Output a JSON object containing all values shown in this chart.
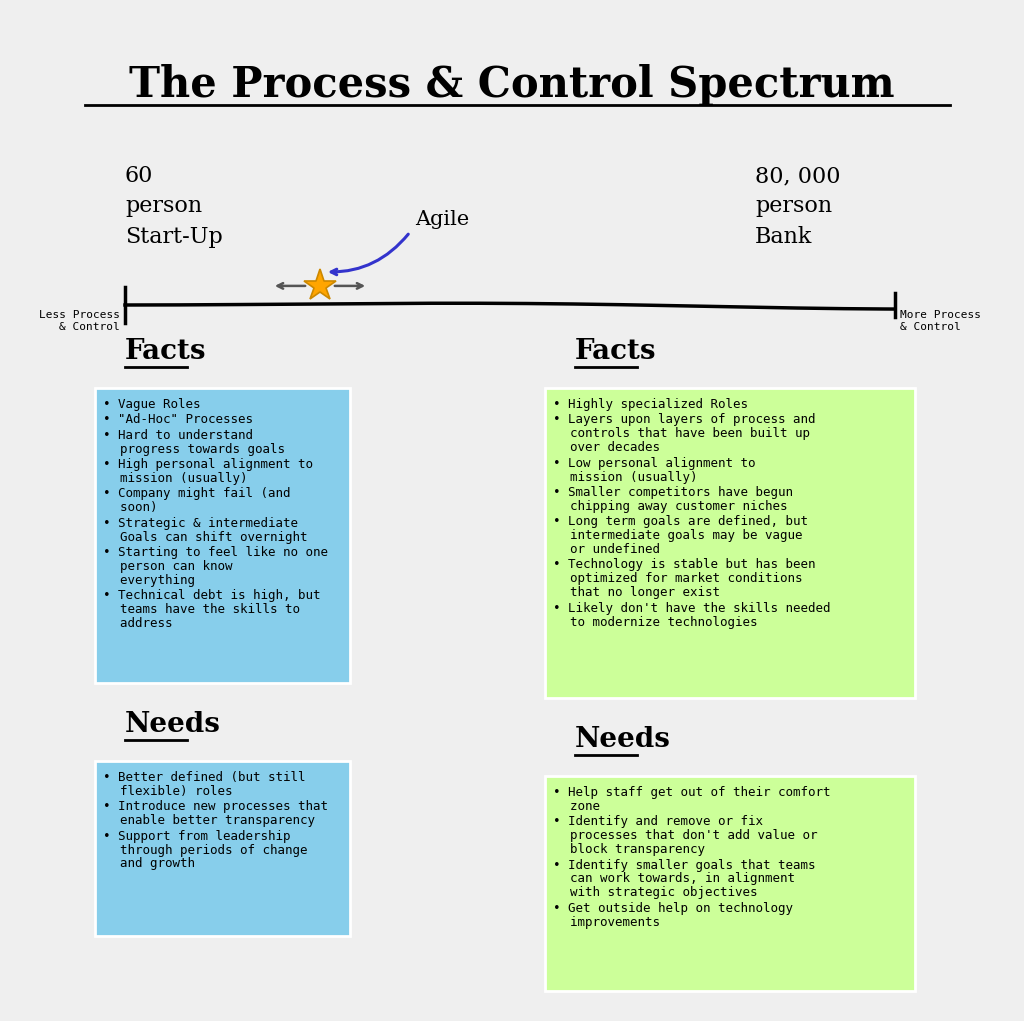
{
  "title": "The Process & Control Spectrum",
  "background_color": "#efefef",
  "left_label": "60\nperson\nStart-Up",
  "right_label": "80, 000\nperson\nBank",
  "agile_label": "Agile",
  "less_label": "Less Process\n& Control",
  "more_label": "More Process\n& Control",
  "left_facts_title": "Facts",
  "right_facts_title": "Facts",
  "left_needs_title": "Needs",
  "right_needs_title": "Needs",
  "left_facts": [
    "Vague Roles",
    "\"Ad-Hoc\" Processes",
    "Hard to understand\n  progress towards goals",
    "High personal alignment to\n  mission (usually)",
    "Company might fail (and\n  soon)",
    "Strategic & intermediate\n  Goals can shift overnight",
    "Starting to feel like no one\n  person can know\n  everything",
    "Technical debt is high, but\n  teams have the skills to\n  address"
  ],
  "right_facts": [
    "Highly specialized Roles",
    "Layers upon layers of process and\n  controls that have been built up\n  over decades",
    "Low personal alignment to\n  mission (usually)",
    "Smaller competitors have begun\n  chipping away customer niches",
    "Long term goals are defined, but\n  intermediate goals may be vague\n  or undefined",
    "Technology is stable but has been\n  optimized for market conditions\n  that no longer exist",
    "Likely don't have the skills needed\n  to modernize technologies"
  ],
  "left_needs": [
    "Better defined (but still\n  flexible) roles",
    "Introduce new processes that\n  enable better transparency",
    "Support from leadership\n  through periods of change\n  and growth"
  ],
  "right_needs": [
    "Help staff get out of their comfort\n  zone",
    "Identify and remove or fix\n  processes that don't add value or\n  block transparency",
    "Identify smaller goals that teams\n  can work towards, in alignment\n  with strategic objectives",
    "Get outside help on technology\n  improvements"
  ],
  "left_box_color": "#87CEEB",
  "right_box_color": "#CCFF99",
  "star_color": "#FFA500",
  "star_edge_color": "#CC8800",
  "arrow_color": "#3333CC",
  "spectrum_arrow_color": "#555555",
  "title_fontsize": 30,
  "label_fontsize": 16,
  "section_fontsize": 18,
  "body_fontsize": 9,
  "small_fontsize": 8
}
